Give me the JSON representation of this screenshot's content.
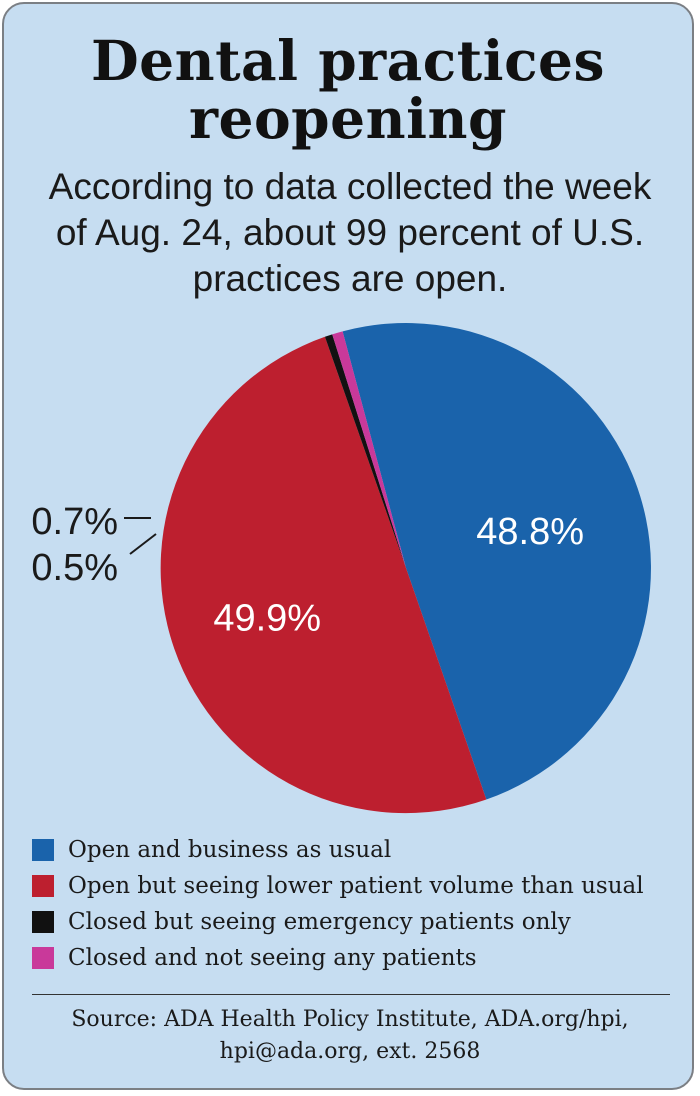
{
  "title": "Dental practices reopening",
  "subtitle": "According to data collected the week of Aug. 24, about 99 percent of U.S. practices are open.",
  "chart_data": {
    "type": "pie",
    "slices": [
      {
        "label": "Open and business as usual",
        "value": 48.8,
        "display": "48.8%",
        "color": "#1a63ab"
      },
      {
        "label": "Open but seeing lower patient volume than usual",
        "value": 49.9,
        "display": "49.9%",
        "color": "#bd1f2f"
      },
      {
        "label": "Closed but seeing emergency patients only",
        "value": 0.5,
        "display": "0.5%",
        "color": "#111111"
      },
      {
        "label": "Closed and not seeing any patients",
        "value": 0.7,
        "display": "0.7%",
        "color": "#c9399a"
      }
    ]
  },
  "source": "Source: ADA Health Policy Institute, ADA.org/hpi, hpi@ada.org, ext. 2568"
}
